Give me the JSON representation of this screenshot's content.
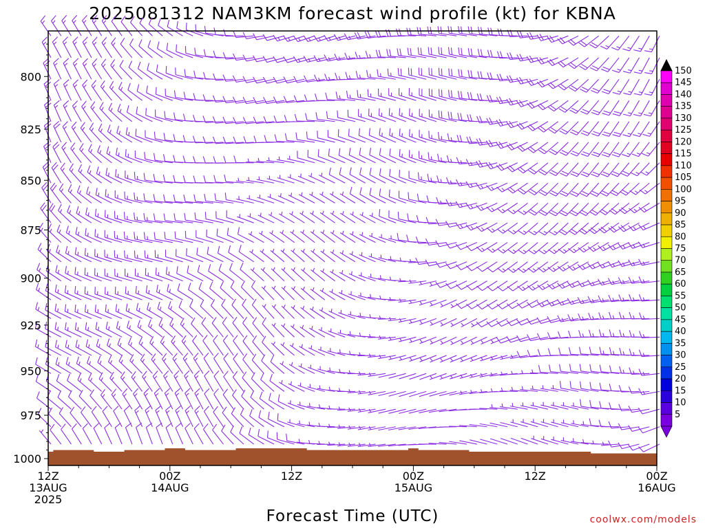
{
  "chart_data": {
    "type": "wind-barb time-height profile",
    "title": "2025081312 NAM3KM forecast wind profile (kt) for KBNA",
    "xlabel": "Forecast Time (UTC)",
    "ylabel": "",
    "credit": "coolwx.com/models",
    "x_axis": {
      "range_hours": [
        0,
        60
      ],
      "ticks": [
        {
          "hour": 0,
          "line1": "12Z",
          "line2": "13AUG",
          "line3": "2025"
        },
        {
          "hour": 12,
          "line1": "00Z",
          "line2": "14AUG",
          "line3": ""
        },
        {
          "hour": 24,
          "line1": "12Z",
          "line2": "",
          "line3": ""
        },
        {
          "hour": 36,
          "line1": "00Z",
          "line2": "15AUG",
          "line3": ""
        },
        {
          "hour": 48,
          "line1": "12Z",
          "line2": "",
          "line3": ""
        },
        {
          "hour": 60,
          "line1": "00Z",
          "line2": "16AUG",
          "line3": ""
        }
      ]
    },
    "y_axis": {
      "unit": "hPa",
      "range": [
        1004,
        779
      ],
      "ticks": [
        800,
        825,
        850,
        875,
        900,
        925,
        950,
        975,
        1000
      ]
    },
    "barb_times_hours": [
      0,
      1,
      2,
      3,
      4,
      5,
      6,
      7,
      8,
      9,
      10,
      11,
      12,
      13,
      14,
      15,
      16,
      17,
      18,
      19,
      20,
      21,
      22,
      23,
      24,
      25,
      26,
      27,
      28,
      29,
      30,
      31,
      32,
      33,
      34,
      35,
      36,
      37,
      38,
      39,
      40,
      41,
      42,
      43,
      44,
      45,
      46,
      47,
      48,
      49,
      50,
      51,
      52,
      53,
      54,
      55,
      56,
      57,
      58,
      59,
      60
    ],
    "barb_levels_hpa": [
      780,
      790,
      800,
      810,
      820,
      830,
      840,
      850,
      860,
      870,
      880,
      890,
      900,
      910,
      920,
      930,
      940,
      950,
      960,
      970,
      980,
      990
    ],
    "surface_pressure_hpa": [
      1000,
      999,
      999,
      999,
      999,
      1000,
      1000,
      1000,
      999,
      999,
      999,
      999,
      998,
      998,
      999,
      999,
      999,
      999,
      999,
      998,
      998,
      998,
      998,
      998,
      998,
      998,
      999,
      999,
      999,
      999,
      999,
      999,
      999,
      999,
      999,
      999,
      998,
      999,
      999,
      999,
      999,
      999,
      1000,
      1000,
      1000,
      1000,
      1000,
      1000,
      1000,
      1000,
      1000,
      1000,
      1000,
      1000,
      1001,
      1001,
      1001,
      1001,
      1001,
      1001,
      1001
    ],
    "colorbar": {
      "values": [
        5,
        10,
        15,
        20,
        25,
        30,
        35,
        40,
        45,
        50,
        55,
        60,
        65,
        70,
        75,
        80,
        85,
        90,
        95,
        100,
        105,
        110,
        115,
        120,
        125,
        130,
        135,
        140,
        145,
        150
      ],
      "colors": [
        "#7a00e0",
        "#5a00e0",
        "#2a00dd",
        "#0000dd",
        "#0030e8",
        "#0060f0",
        "#0090f0",
        "#00b8f0",
        "#00d0c8",
        "#00e0a0",
        "#00e070",
        "#00d040",
        "#30d020",
        "#70e020",
        "#b0f020",
        "#f0f000",
        "#f0d000",
        "#f0b000",
        "#f09000",
        "#f07000",
        "#f05000",
        "#f03000",
        "#e80000",
        "#e00020",
        "#e00040",
        "#e00070",
        "#e00090",
        "#e000b0",
        "#e000d0",
        "#ff00ff"
      ]
    },
    "wind_note": "Barbs drawn for each forecast hour and level; directions veer from northwesterly aloft early to westerly/southwesterly later; near-surface winds light (5-10 kt)."
  }
}
